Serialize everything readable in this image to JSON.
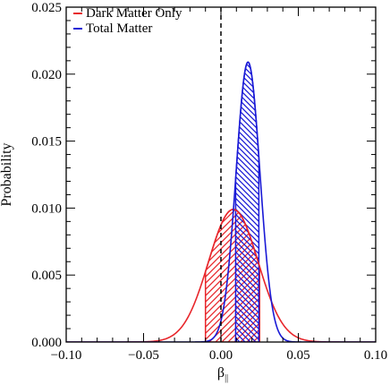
{
  "chart_data": {
    "type": "line",
    "title": "",
    "xlabel": "β",
    "xlabel_subscript": "||",
    "ylabel": "Probability",
    "xlim": [
      -0.1,
      0.1
    ],
    "ylim": [
      0.0,
      0.025
    ],
    "xticks": [
      -0.1,
      -0.05,
      0.0,
      0.05,
      0.1
    ],
    "xtick_labels": [
      "−0.10",
      "−0.05",
      "0.00",
      "0.05",
      "0.10"
    ],
    "yticks": [
      0.0,
      0.005,
      0.01,
      0.015,
      0.02,
      0.025
    ],
    "ytick_labels": [
      "0.000",
      "0.005",
      "0.010",
      "0.015",
      "0.020",
      "0.025"
    ],
    "grid": false,
    "legend_position": "top-left",
    "reference_line": {
      "x": 0.0,
      "style": "dashed"
    },
    "series": [
      {
        "name": "Dark Matter Only",
        "color": "#e8262b",
        "distribution": "gaussian",
        "peak_x": 0.008,
        "peak_y": 0.0099,
        "sigma": 0.016,
        "shaded_interval": [
          -0.01,
          0.025
        ],
        "hatch": "diagonal-up"
      },
      {
        "name": "Total Matter",
        "color": "#1a1ad6",
        "distribution": "gaussian",
        "peak_x": 0.0175,
        "peak_y": 0.0209,
        "sigma": 0.0077,
        "shaded_interval": [
          0.0095,
          0.0245
        ],
        "hatch": "diagonal-down"
      }
    ]
  }
}
